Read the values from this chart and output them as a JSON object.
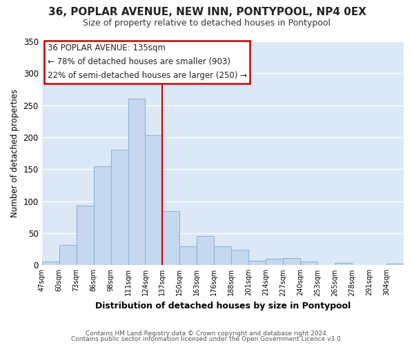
{
  "title": "36, POPLAR AVENUE, NEW INN, PONTYPOOL, NP4 0EX",
  "subtitle": "Size of property relative to detached houses in Pontypool",
  "xlabel": "Distribution of detached houses by size in Pontypool",
  "ylabel": "Number of detached properties",
  "footer1": "Contains HM Land Registry data © Crown copyright and database right 2024.",
  "footer2": "Contains public sector information licensed under the Open Government Licence v3.0.",
  "bar_labels": [
    "47sqm",
    "60sqm",
    "73sqm",
    "86sqm",
    "98sqm",
    "111sqm",
    "124sqm",
    "137sqm",
    "150sqm",
    "163sqm",
    "176sqm",
    "188sqm",
    "201sqm",
    "214sqm",
    "227sqm",
    "240sqm",
    "253sqm",
    "265sqm",
    "278sqm",
    "291sqm",
    "304sqm"
  ],
  "bar_values": [
    6,
    32,
    93,
    155,
    181,
    260,
    203,
    85,
    29,
    46,
    29,
    24,
    7,
    10,
    11,
    6,
    0,
    4,
    0,
    0,
    2
  ],
  "bar_color": "#c5d8f0",
  "bar_edge_color": "#8cb4d8",
  "vline_x_index": 7,
  "vline_color": "#cc0000",
  "annotation_title": "36 POPLAR AVENUE: 135sqm",
  "annotation_line1": "← 78% of detached houses are smaller (903)",
  "annotation_line2": "22% of semi-detached houses are larger (250) →",
  "annotation_box_color": "#ffffff",
  "annotation_box_edge": "#cc0000",
  "ylim": [
    0,
    350
  ],
  "yticks": [
    0,
    50,
    100,
    150,
    200,
    250,
    300,
    350
  ],
  "plot_bg_color": "#dce8f5",
  "fig_bg_color": "#ffffff",
  "grid_color": "#ffffff"
}
